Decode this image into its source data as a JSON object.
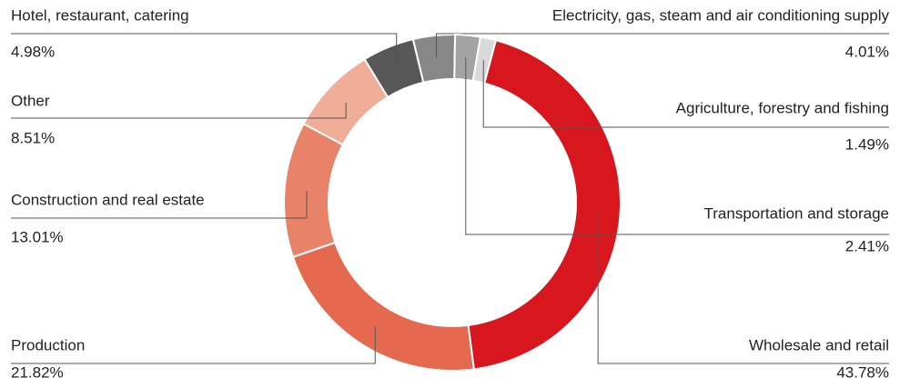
{
  "chart_data": {
    "type": "pie",
    "categories": [
      "Wholesale and retail",
      "Production",
      "Construction and real estate",
      "Other",
      "Hotel, restaurant, catering",
      "Electricity, gas, steam and air conditioning supply",
      "Transportation and storage",
      "Agriculture, forestry and fishing"
    ],
    "values": [
      43.78,
      21.82,
      13.01,
      8.51,
      4.98,
      4.01,
      2.41,
      1.49
    ],
    "value_labels": [
      "43.78%",
      "21.82%",
      "13.01%",
      "8.51%",
      "4.98%",
      "4.01%",
      "2.41%",
      "1.49%"
    ],
    "colors": [
      "#d7161e",
      "#e5694f",
      "#e8836a",
      "#f0ae98",
      "#575757",
      "#878787",
      "#a3a3a3",
      "#d9d9d9"
    ]
  }
}
